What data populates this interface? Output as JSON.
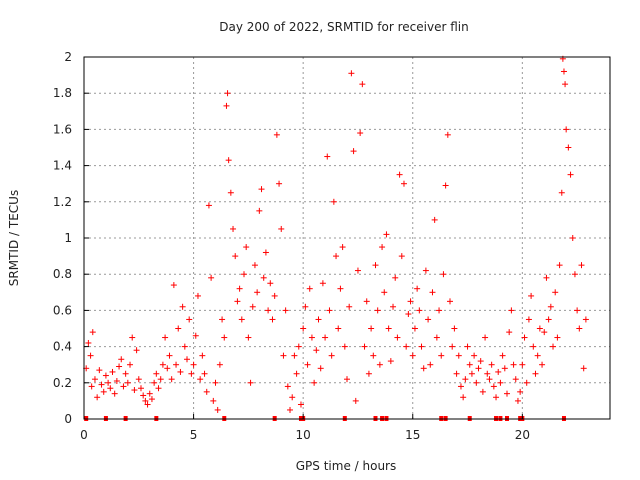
{
  "chart_data": {
    "type": "scatter",
    "title": "Day 200 of 2022, SRMTID for receiver flin",
    "xlabel": "GPS time / hours",
    "ylabel": "SRMTID / TECUs",
    "xlim": [
      0,
      24
    ],
    "ylim": [
      0,
      2
    ],
    "xticks": [
      "0",
      "5",
      "10",
      "15",
      "20"
    ],
    "yticks": [
      "0",
      "0.2",
      "0.4",
      "0.6",
      "0.8",
      "1",
      "1.2",
      "1.4",
      "1.6",
      "1.8",
      "2"
    ],
    "grid": true,
    "marker": "+",
    "color": "#ff0000",
    "series": [
      {
        "name": "SRMTID",
        "points": [
          [
            0.1,
            0.28
          ],
          [
            0.2,
            0.42
          ],
          [
            0.3,
            0.35
          ],
          [
            0.35,
            0.18
          ],
          [
            0.4,
            0.48
          ],
          [
            0.5,
            0.22
          ],
          [
            0.6,
            0.12
          ],
          [
            0.7,
            0.27
          ],
          [
            0.8,
            0.19
          ],
          [
            0.9,
            0.15
          ],
          [
            1.0,
            0.24
          ],
          [
            1.1,
            0.2
          ],
          [
            1.2,
            0.17
          ],
          [
            1.3,
            0.26
          ],
          [
            1.4,
            0.14
          ],
          [
            1.5,
            0.21
          ],
          [
            1.6,
            0.29
          ],
          [
            1.7,
            0.33
          ],
          [
            1.8,
            0.18
          ],
          [
            1.9,
            0.25
          ],
          [
            2.0,
            0.2
          ],
          [
            2.1,
            0.3
          ],
          [
            2.2,
            0.45
          ],
          [
            2.3,
            0.16
          ],
          [
            2.4,
            0.38
          ],
          [
            2.5,
            0.22
          ],
          [
            2.6,
            0.17
          ],
          [
            2.7,
            0.13
          ],
          [
            2.8,
            0.1
          ],
          [
            2.9,
            0.08
          ],
          [
            3.0,
            0.14
          ],
          [
            3.1,
            0.11
          ],
          [
            3.2,
            0.2
          ],
          [
            3.3,
            0.25
          ],
          [
            3.4,
            0.17
          ],
          [
            3.5,
            0.22
          ],
          [
            3.6,
            0.3
          ],
          [
            3.7,
            0.45
          ],
          [
            3.8,
            0.28
          ],
          [
            3.9,
            0.35
          ],
          [
            4.0,
            0.22
          ],
          [
            4.1,
            0.74
          ],
          [
            4.2,
            0.3
          ],
          [
            4.3,
            0.5
          ],
          [
            4.4,
            0.26
          ],
          [
            4.5,
            0.62
          ],
          [
            4.6,
            0.4
          ],
          [
            4.7,
            0.33
          ],
          [
            4.8,
            0.55
          ],
          [
            4.9,
            0.25
          ],
          [
            5.0,
            0.3
          ],
          [
            5.1,
            0.46
          ],
          [
            5.2,
            0.68
          ],
          [
            5.3,
            0.22
          ],
          [
            5.4,
            0.35
          ],
          [
            5.5,
            0.25
          ],
          [
            5.6,
            0.15
          ],
          [
            5.7,
            1.18
          ],
          [
            5.8,
            0.78
          ],
          [
            5.9,
            0.1
          ],
          [
            6.0,
            0.2
          ],
          [
            6.1,
            0.05
          ],
          [
            6.2,
            0.3
          ],
          [
            6.3,
            0.55
          ],
          [
            6.4,
            0.45
          ],
          [
            6.5,
            1.73
          ],
          [
            6.55,
            1.8
          ],
          [
            6.6,
            1.43
          ],
          [
            6.7,
            1.25
          ],
          [
            6.8,
            1.05
          ],
          [
            6.9,
            0.9
          ],
          [
            7.0,
            0.65
          ],
          [
            7.1,
            0.72
          ],
          [
            7.2,
            0.55
          ],
          [
            7.3,
            0.8
          ],
          [
            7.4,
            0.95
          ],
          [
            7.5,
            0.45
          ],
          [
            7.6,
            0.2
          ],
          [
            7.7,
            0.62
          ],
          [
            7.8,
            0.85
          ],
          [
            7.9,
            0.7
          ],
          [
            8.0,
            1.15
          ],
          [
            8.1,
            1.27
          ],
          [
            8.2,
            0.78
          ],
          [
            8.3,
            0.92
          ],
          [
            8.4,
            0.6
          ],
          [
            8.5,
            0.75
          ],
          [
            8.6,
            0.55
          ],
          [
            8.7,
            0.68
          ],
          [
            8.8,
            1.57
          ],
          [
            8.9,
            1.3
          ],
          [
            9.0,
            1.05
          ],
          [
            9.1,
            0.35
          ],
          [
            9.2,
            0.6
          ],
          [
            9.3,
            0.18
          ],
          [
            9.4,
            0.05
          ],
          [
            9.5,
            0.12
          ],
          [
            9.6,
            0.35
          ],
          [
            9.7,
            0.25
          ],
          [
            9.8,
            0.4
          ],
          [
            9.9,
            0.08
          ],
          [
            10.0,
            0.5
          ],
          [
            10.1,
            0.62
          ],
          [
            10.2,
            0.3
          ],
          [
            10.3,
            0.72
          ],
          [
            10.4,
            0.45
          ],
          [
            10.5,
            0.2
          ],
          [
            10.6,
            0.38
          ],
          [
            10.7,
            0.55
          ],
          [
            10.8,
            0.28
          ],
          [
            10.9,
            0.75
          ],
          [
            11.0,
            0.45
          ],
          [
            11.1,
            1.45
          ],
          [
            11.2,
            0.6
          ],
          [
            11.3,
            0.35
          ],
          [
            11.4,
            1.2
          ],
          [
            11.5,
            0.9
          ],
          [
            11.6,
            0.5
          ],
          [
            11.7,
            0.72
          ],
          [
            11.8,
            0.95
          ],
          [
            11.9,
            0.4
          ],
          [
            12.0,
            0.22
          ],
          [
            12.1,
            0.62
          ],
          [
            12.2,
            1.91
          ],
          [
            12.3,
            1.48
          ],
          [
            12.4,
            0.1
          ],
          [
            12.5,
            0.82
          ],
          [
            12.6,
            1.58
          ],
          [
            12.7,
            1.85
          ],
          [
            12.8,
            0.4
          ],
          [
            12.9,
            0.65
          ],
          [
            13.0,
            0.25
          ],
          [
            13.1,
            0.5
          ],
          [
            13.2,
            0.35
          ],
          [
            13.3,
            0.85
          ],
          [
            13.4,
            0.6
          ],
          [
            13.5,
            0.3
          ],
          [
            13.6,
            0.95
          ],
          [
            13.7,
            0.7
          ],
          [
            13.8,
            1.02
          ],
          [
            13.9,
            0.5
          ],
          [
            14.0,
            0.32
          ],
          [
            14.1,
            0.62
          ],
          [
            14.2,
            0.78
          ],
          [
            14.3,
            0.45
          ],
          [
            14.4,
            1.35
          ],
          [
            14.5,
            0.9
          ],
          [
            14.6,
            1.3
          ],
          [
            14.7,
            0.4
          ],
          [
            14.8,
            0.58
          ],
          [
            14.9,
            0.65
          ],
          [
            15.0,
            0.35
          ],
          [
            15.1,
            0.5
          ],
          [
            15.2,
            0.72
          ],
          [
            15.3,
            0.6
          ],
          [
            15.4,
            0.4
          ],
          [
            15.5,
            0.28
          ],
          [
            15.6,
            0.82
          ],
          [
            15.7,
            0.55
          ],
          [
            15.8,
            0.3
          ],
          [
            15.9,
            0.7
          ],
          [
            16.0,
            1.1
          ],
          [
            16.1,
            0.45
          ],
          [
            16.2,
            0.6
          ],
          [
            16.3,
            0.35
          ],
          [
            16.4,
            0.8
          ],
          [
            16.5,
            1.29
          ],
          [
            16.6,
            1.57
          ],
          [
            16.7,
            0.65
          ],
          [
            16.8,
            0.4
          ],
          [
            16.9,
            0.5
          ],
          [
            17.0,
            0.25
          ],
          [
            17.1,
            0.35
          ],
          [
            17.2,
            0.18
          ],
          [
            17.3,
            0.12
          ],
          [
            17.4,
            0.22
          ],
          [
            17.5,
            0.4
          ],
          [
            17.6,
            0.3
          ],
          [
            17.7,
            0.25
          ],
          [
            17.8,
            0.35
          ],
          [
            17.9,
            0.2
          ],
          [
            18.0,
            0.28
          ],
          [
            18.1,
            0.32
          ],
          [
            18.2,
            0.15
          ],
          [
            18.3,
            0.45
          ],
          [
            18.4,
            0.25
          ],
          [
            18.5,
            0.22
          ],
          [
            18.6,
            0.3
          ],
          [
            18.7,
            0.18
          ],
          [
            18.8,
            0.12
          ],
          [
            18.9,
            0.26
          ],
          [
            19.0,
            0.2
          ],
          [
            19.1,
            0.35
          ],
          [
            19.2,
            0.28
          ],
          [
            19.3,
            0.14
          ],
          [
            19.4,
            0.48
          ],
          [
            19.5,
            0.6
          ],
          [
            19.6,
            0.3
          ],
          [
            19.7,
            0.22
          ],
          [
            19.8,
            0.1
          ],
          [
            19.9,
            0.15
          ],
          [
            20.0,
            0.3
          ],
          [
            20.1,
            0.45
          ],
          [
            20.2,
            0.2
          ],
          [
            20.3,
            0.55
          ],
          [
            20.4,
            0.68
          ],
          [
            20.5,
            0.4
          ],
          [
            20.6,
            0.25
          ],
          [
            20.7,
            0.35
          ],
          [
            20.8,
            0.5
          ],
          [
            20.9,
            0.3
          ],
          [
            21.0,
            0.48
          ],
          [
            21.1,
            0.78
          ],
          [
            21.2,
            0.55
          ],
          [
            21.3,
            0.62
          ],
          [
            21.4,
            0.4
          ],
          [
            21.5,
            0.7
          ],
          [
            21.6,
            0.45
          ],
          [
            21.7,
            0.85
          ],
          [
            21.8,
            1.25
          ],
          [
            21.85,
            1.99
          ],
          [
            21.9,
            1.92
          ],
          [
            21.95,
            1.85
          ],
          [
            22.0,
            1.6
          ],
          [
            22.1,
            1.5
          ],
          [
            22.2,
            1.35
          ],
          [
            22.3,
            1.0
          ],
          [
            22.4,
            0.8
          ],
          [
            22.5,
            0.6
          ],
          [
            22.6,
            0.5
          ],
          [
            22.7,
            0.85
          ],
          [
            22.8,
            0.28
          ],
          [
            22.9,
            0.55
          ]
        ]
      }
    ],
    "gap_markers_x": [
      0.1,
      1.0,
      1.9,
      3.3,
      6.4,
      8.7,
      9.9,
      10.0,
      11.9,
      13.3,
      13.6,
      13.8,
      16.3,
      16.5,
      17.6,
      18.8,
      19.0,
      19.3,
      19.9,
      20.0,
      21.9
    ]
  }
}
